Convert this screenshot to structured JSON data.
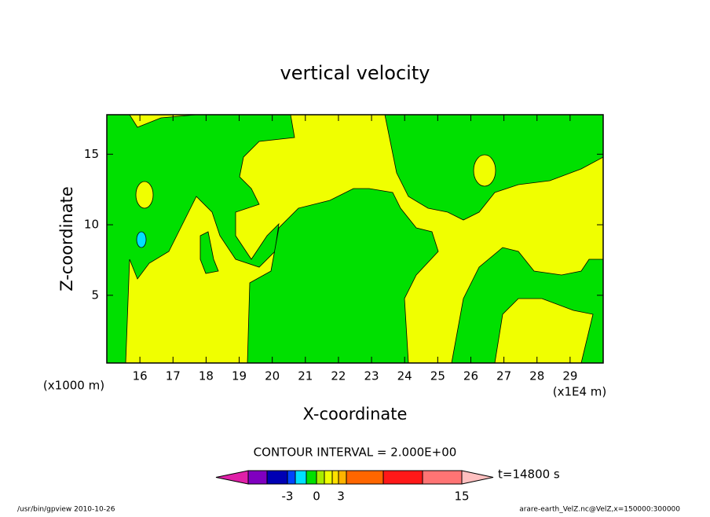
{
  "chart_data": {
    "type": "contour",
    "title": "vertical velocity",
    "x_label": "X-coordinate",
    "y_label": "Z-coordinate",
    "x_unit": "(x1E4 m)",
    "y_unit": "(x1000 m)",
    "xlim": [
      15,
      30
    ],
    "xticks": [
      16,
      17,
      18,
      19,
      20,
      21,
      22,
      23,
      24,
      25,
      26,
      27,
      28,
      29
    ],
    "ylim": [
      0.2,
      17.8
    ],
    "yticks": [
      5,
      10,
      15
    ],
    "contour_interval": "CONTOUR INTERVAL = 2.000E+00",
    "time_label": "t=14800 s",
    "colorbar": {
      "colors": [
        "#e020a8",
        "#8000c0",
        "#0000b4",
        "#0044ff",
        "#00e0ff",
        "#00e000",
        "#a8ec00",
        "#f0ff00",
        "#ffe000",
        "#ffb400",
        "#ff6600",
        "#ff1818",
        "#ff7474",
        "#ffc0c0"
      ],
      "ticks": [
        -3,
        0,
        3,
        15
      ]
    },
    "footer_left": "/usr/bin/gpview  2010-10-26",
    "footer_right": "arare-earth_VelZ.nc@VelZ,x=150000:300000"
  }
}
